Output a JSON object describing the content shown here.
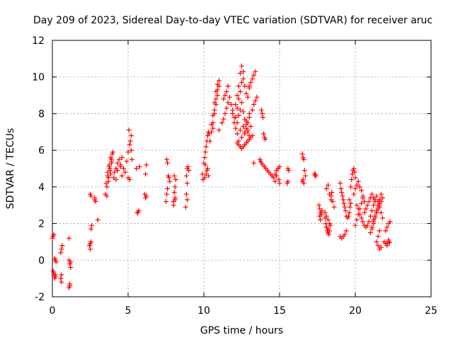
{
  "chart_data": {
    "type": "scatter",
    "title": "Day 209 of 2023, Sidereal Day-to-day VTEC variation (SDTVAR) for receiver aruc",
    "xlabel": "GPS time / hours",
    "ylabel": "SDTVAR / TECUs",
    "xlim": [
      0,
      25
    ],
    "ylim": [
      -2,
      12
    ],
    "xticks": [
      0,
      5,
      10,
      15,
      20,
      25
    ],
    "yticks": [
      -2,
      0,
      2,
      4,
      6,
      8,
      10,
      12
    ],
    "grid": true,
    "marker": "+",
    "color": "#ff0000",
    "series": [
      {
        "name": "SDTVAR",
        "x": [
          0.0,
          0.05,
          0.1,
          0.15,
          0.2,
          0.25,
          0.05,
          0.1,
          0.15,
          0.2,
          0.1,
          0.2,
          0.55,
          0.6,
          0.65,
          0.6,
          0.55,
          0.6,
          1.1,
          1.15,
          1.2,
          1.1,
          1.2,
          1.15,
          1.1,
          1.15,
          2.45,
          2.5,
          2.55,
          2.5,
          2.55,
          2.6,
          2.5,
          2.55,
          2.8,
          2.85,
          2.8,
          3.0,
          3.5,
          3.6,
          3.7,
          3.8,
          3.9,
          3.55,
          3.65,
          3.75,
          3.85,
          3.95,
          3.6,
          3.7,
          3.8,
          3.9,
          4.0,
          3.65,
          3.75,
          3.85,
          3.9,
          4.05,
          4.1,
          4.2,
          4.3,
          4.4,
          4.5,
          4.6,
          4.2,
          4.3,
          4.5,
          4.6,
          4.7,
          4.8,
          4.9,
          5.0,
          5.1,
          5.2,
          5.05,
          5.15,
          5.2,
          5.25,
          5.0,
          5.1,
          5.55,
          5.6,
          5.7,
          5.65,
          5.75,
          6.1,
          6.15,
          6.2,
          6.2,
          6.15,
          7.5,
          7.55,
          7.6,
          7.55,
          7.6,
          7.7,
          7.75,
          7.65,
          8.0,
          8.1,
          8.05,
          8.1,
          8.15,
          8.05,
          8.0,
          8.1,
          8.8,
          8.85,
          8.9,
          8.85,
          8.9,
          8.95,
          9.0,
          8.9,
          9.9,
          10.0,
          10.05,
          10.1,
          10.15,
          10.2,
          10.25,
          10.3,
          10.35,
          10.1,
          10.2,
          10.3,
          9.95,
          10.05,
          10.15,
          10.25,
          10.4,
          10.5,
          10.6,
          10.7,
          10.8,
          10.9,
          11.0,
          10.6,
          10.7,
          10.8,
          10.9,
          11.0,
          10.5,
          10.6,
          10.7,
          10.8,
          10.9,
          11.0,
          11.2,
          11.3,
          11.4,
          11.5,
          11.6,
          11.3,
          11.4,
          11.5,
          11.6,
          11.7,
          11.8,
          11.9,
          11.9,
          12.0,
          12.1,
          12.2,
          12.3,
          12.4,
          12.5,
          12.6,
          12.0,
          12.1,
          12.2,
          12.3,
          12.4,
          12.5,
          12.6,
          12.7,
          12.8,
          12.9,
          13.0,
          12.1,
          12.2,
          12.3,
          12.4,
          12.5,
          12.6,
          12.7,
          12.8,
          12.9,
          13.0,
          12.2,
          12.4,
          12.6,
          12.8,
          13.0,
          12.3,
          12.5,
          12.7,
          12.9,
          13.1,
          12.2,
          12.3,
          12.4,
          12.5,
          12.6,
          12.7,
          12.8,
          12.9,
          13.0,
          13.1,
          13.2,
          13.0,
          13.1,
          13.2,
          13.3,
          13.4,
          12.7,
          12.8,
          12.9,
          13.0,
          13.2,
          13.3,
          13.4,
          13.5,
          13.3,
          13.8,
          13.85,
          13.9,
          13.95,
          14.0,
          14.05,
          13.7,
          13.75,
          13.8,
          13.9,
          14.0,
          14.1,
          14.2,
          14.3,
          14.4,
          14.5,
          14.6,
          14.7,
          14.8,
          14.9,
          15.0,
          14.95,
          15.0,
          14.7,
          14.8,
          15.5,
          15.55,
          15.6,
          15.55,
          16.5,
          16.55,
          16.6,
          16.65,
          16.7,
          16.5,
          16.55,
          16.6,
          17.3,
          17.35,
          17.4,
          17.35,
          17.6,
          17.65,
          17.7,
          17.75,
          17.8,
          17.65,
          17.7,
          17.75,
          18.0,
          18.05,
          18.1,
          18.15,
          18.2,
          18.25,
          18.3,
          18.35,
          18.4,
          18.45,
          18.1,
          18.2,
          18.3,
          18.4,
          18.5,
          18.6,
          18.0,
          18.1,
          18.2,
          18.3,
          18.1,
          18.2,
          19.0,
          19.05,
          19.1,
          19.15,
          19.2,
          19.25,
          19.3,
          19.35,
          19.4,
          19.0,
          19.1,
          19.2,
          19.3,
          19.4,
          19.5,
          19.55,
          19.6,
          19.65,
          19.7,
          19.6,
          19.7,
          19.75,
          19.8,
          19.85,
          19.9,
          19.95,
          20.0,
          19.9,
          20.0,
          20.1,
          20.2,
          20.3,
          20.4,
          20.5,
          20.6,
          20.0,
          20.1,
          20.2,
          20.3,
          20.4,
          20.5,
          20.1,
          20.2,
          20.3,
          20.4,
          20.5,
          20.6,
          20.7,
          20.8,
          20.6,
          20.7,
          20.8,
          20.9,
          21.0,
          21.1,
          21.2,
          21.3,
          20.9,
          21.0,
          21.1,
          21.2,
          21.3,
          21.4,
          21.5,
          21.6,
          21.7,
          21.8,
          21.0,
          21.1,
          21.2,
          21.3,
          21.4,
          21.5,
          21.6,
          21.1,
          21.2,
          21.3,
          21.4,
          21.5,
          21.6,
          21.7,
          21.2,
          21.3,
          21.4,
          21.5,
          21.6,
          21.7,
          21.8,
          21.4,
          21.5,
          21.6,
          21.7,
          21.5,
          21.6,
          21.9,
          22.0,
          22.1,
          22.2,
          22.25,
          22.0,
          22.1,
          22.2,
          22.3,
          22.1,
          22.2
        ],
        "y": [
          1.2,
          1.3,
          1.4,
          0.1,
          0.0,
          -0.1,
          -0.6,
          -0.8,
          -1.0,
          -0.9,
          -0.7,
          -0.8,
          0.4,
          0.6,
          0.8,
          -0.8,
          -1.0,
          -1.2,
          1.2,
          -0.2,
          -0.1,
          0.0,
          -0.4,
          -1.3,
          -1.5,
          -1.4,
          0.8,
          0.9,
          1.0,
          0.6,
          1.7,
          1.9,
          3.6,
          3.5,
          3.4,
          3.2,
          3.3,
          2.2,
          3.6,
          4.0,
          4.5,
          5.0,
          5.5,
          4.2,
          4.8,
          5.2,
          5.6,
          5.8,
          3.5,
          4.3,
          4.9,
          5.4,
          5.9,
          4.6,
          5.1,
          4.7,
          5.3,
          4.5,
          4.8,
          5.0,
          5.3,
          5.5,
          5.1,
          4.6,
          4.4,
          4.9,
          5.2,
          5.6,
          5.0,
          4.8,
          5.4,
          5.9,
          6.3,
          6.8,
          7.1,
          6.5,
          6.0,
          5.5,
          4.5,
          4.4,
          5.0,
          2.6,
          2.7,
          2.6,
          5.1,
          3.6,
          3.4,
          3.5,
          5.2,
          4.7,
          3.2,
          3.6,
          3.9,
          5.5,
          5.3,
          4.5,
          4.3,
          4.6,
          3.2,
          3.4,
          3.7,
          4.0,
          4.4,
          4.6,
          3.0,
          3.3,
          2.9,
          3.6,
          4.2,
          4.6,
          5.0,
          5.1,
          4.9,
          3.3,
          4.7,
          5.3,
          5.6,
          5.9,
          6.2,
          6.5,
          6.8,
          7.0,
          6.9,
          5.2,
          4.9,
          4.6,
          4.4,
          4.5,
          4.7,
          5.0,
          6.5,
          7.0,
          7.5,
          8.0,
          8.5,
          9.0,
          9.5,
          7.2,
          8.2,
          8.8,
          9.3,
          9.8,
          7.4,
          7.9,
          8.6,
          9.2,
          9.6,
          7.1,
          7.5,
          7.7,
          8.0,
          8.3,
          8.6,
          8.8,
          9.0,
          9.2,
          9.5,
          8.9,
          8.5,
          8.2,
          8.0,
          7.8,
          8.5,
          9.0,
          9.5,
          10.2,
          10.6,
          10.3,
          7.5,
          7.8,
          8.3,
          8.8,
          9.2,
          9.7,
          9.9,
          9.5,
          9.1,
          8.9,
          9.4,
          7.2,
          7.5,
          7.9,
          8.2,
          8.6,
          8.1,
          7.7,
          7.4,
          7.0,
          6.8,
          6.9,
          7.1,
          7.3,
          7.6,
          8.0,
          6.5,
          6.7,
          6.9,
          7.1,
          7.3,
          6.4,
          6.3,
          6.2,
          6.1,
          6.2,
          6.3,
          6.4,
          6.5,
          6.6,
          6.7,
          6.8,
          9.5,
          9.7,
          9.9,
          10.1,
          10.3,
          7.0,
          7.2,
          7.5,
          7.8,
          8.2,
          8.5,
          8.7,
          8.9,
          5.3,
          8.2,
          8.0,
          7.8,
          6.9,
          6.7,
          6.6,
          5.5,
          5.4,
          5.3,
          5.2,
          5.1,
          5.0,
          4.9,
          4.8,
          4.7,
          4.6,
          4.5,
          4.7,
          4.9,
          5.0,
          5.1,
          4.4,
          4.2,
          4.3,
          4.6,
          4.2,
          4.3,
          4.9,
          5.0,
          5.8,
          5.6,
          5.5,
          4.9,
          4.6,
          4.3,
          4.4,
          4.2,
          4.7,
          4.6,
          4.6,
          4.7,
          3.0,
          2.8,
          2.6,
          2.5,
          2.7,
          2.4,
          2.2,
          2.5,
          2.3,
          2.0,
          1.8,
          1.6,
          1.5,
          1.4,
          1.6,
          1.9,
          3.5,
          3.7,
          3.9,
          4.1,
          3.6,
          3.3,
          3.2,
          2.9,
          2.6,
          2.4,
          2.2,
          2.0,
          1.8,
          1.7,
          4.2,
          3.9,
          3.7,
          3.5,
          3.3,
          3.1,
          2.9,
          2.7,
          2.4,
          1.3,
          1.2,
          1.3,
          1.4,
          1.6,
          2.3,
          2.4,
          2.6,
          2.9,
          3.1,
          3.3,
          4.0,
          4.4,
          4.7,
          4.9,
          5.0,
          4.8,
          4.5,
          3.6,
          3.9,
          4.1,
          4.3,
          4.0,
          3.8,
          3.5,
          3.2,
          1.9,
          2.2,
          2.5,
          2.8,
          3.1,
          3.4,
          3.0,
          2.8,
          2.5,
          2.3,
          2.1,
          1.9,
          1.8,
          1.9,
          2.6,
          2.8,
          3.0,
          3.2,
          3.4,
          3.6,
          3.4,
          3.2,
          2.1,
          2.4,
          2.7,
          3.0,
          3.3,
          3.5,
          3.2,
          2.9,
          2.6,
          2.3,
          1.5,
          1.7,
          2.0,
          2.3,
          2.6,
          2.9,
          3.1,
          1.8,
          2.1,
          2.4,
          2.7,
          3.0,
          3.3,
          3.6,
          2.2,
          2.4,
          2.6,
          2.8,
          3.0,
          3.2,
          3.4,
          1.0,
          0.8,
          0.6,
          0.7,
          1.3,
          1.6,
          1.0,
          0.9,
          0.8,
          1.1,
          0.95,
          1.6,
          1.8,
          2.0,
          2.1,
          0.9,
          1.0
        ]
      }
    ]
  }
}
